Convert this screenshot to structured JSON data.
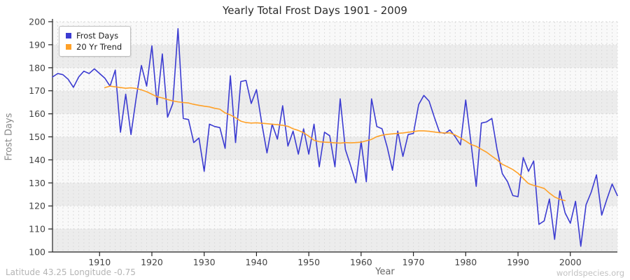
{
  "title": "Yearly Total Frost Days 1901 - 2009",
  "footer": {
    "left": "Latitude 43.25 Longitude -0.75",
    "right": "worldspecies.org"
  },
  "legend": [
    {
      "label": "Frost Days",
      "color": "#3b3bd1"
    },
    {
      "label": "20 Yr Trend",
      "color": "#ffa128"
    }
  ],
  "chart_data": {
    "type": "line",
    "title": "Yearly Total Frost Days 1901 - 2009",
    "xlabel": "Year",
    "ylabel": "Frost Days",
    "xlim": [
      1901,
      2009
    ],
    "ylim": [
      100,
      200
    ],
    "x_ticks": [
      1910,
      1920,
      1930,
      1940,
      1950,
      1960,
      1970,
      1980,
      1990,
      2000
    ],
    "y_ticks": [
      100,
      110,
      120,
      130,
      140,
      150,
      160,
      170,
      180,
      190,
      200
    ],
    "grid": "yearly vertical dashed lines, horizontal dashed lines each 10, alternating horizontal bands",
    "legend_position": "top-left",
    "band_colors": {
      "dark": "#ececec",
      "light": "#f9f9f9"
    },
    "gridline_color": "#dcdcdc",
    "axis_color": "#222222",
    "tick_label_color": "#444444",
    "series": [
      {
        "name": "Frost Days",
        "color": "#3b3bd1",
        "x_start": 1901,
        "values": [
          176,
          177.5,
          177,
          175,
          171.5,
          176,
          178.5,
          177.5,
          179.5,
          177.5,
          175.5,
          172,
          179,
          152,
          168.5,
          151,
          167,
          181,
          172,
          189.5,
          164,
          186,
          158.5,
          164.5,
          197,
          158,
          157.5,
          147.5,
          149.5,
          135,
          155.5,
          154.5,
          154,
          145,
          176.5,
          147.5,
          174,
          174.5,
          164.5,
          170.5,
          156,
          143,
          155.5,
          149,
          163.5,
          146,
          152.5,
          142.5,
          153.5,
          142.5,
          155.5,
          137,
          152,
          150.5,
          137,
          166.5,
          144.5,
          137.5,
          130,
          148,
          130.5,
          166.5,
          154.5,
          153.5,
          145.5,
          135.5,
          152.5,
          141.5,
          151,
          151.5,
          164,
          168,
          165.5,
          158.5,
          152,
          151.5,
          153,
          150,
          146.5,
          166,
          147.5,
          128.5,
          156,
          156.5,
          158,
          144.5,
          134,
          130.5,
          124.5,
          124,
          141,
          135,
          139.5,
          112,
          113.5,
          123,
          105.5,
          126.5,
          117,
          112.5,
          122,
          102.5,
          120.5,
          126,
          133.5,
          116,
          123,
          129.5,
          124.5
        ]
      },
      {
        "name": "20 Yr Trend",
        "color": "#ffa128",
        "x_start": 1911,
        "values": [
          171.4,
          172,
          171.7,
          171.4,
          171.1,
          171.3,
          171,
          170.4,
          169.6,
          168.5,
          167.4,
          166.9,
          166.2,
          165.6,
          165.2,
          164.9,
          164.7,
          164.1,
          163.7,
          163.3,
          163,
          162.4,
          162,
          160.4,
          159.5,
          158.3,
          156.8,
          156.2,
          156,
          156.1,
          155.9,
          155.7,
          155.5,
          155.3,
          155,
          154.6,
          153.5,
          152.8,
          151.8,
          150.3,
          148.5,
          147.9,
          147.7,
          147.6,
          147.4,
          147.3,
          147.5,
          147.4,
          147.5,
          147.7,
          148.3,
          148.9,
          150.1,
          150.7,
          151.1,
          151.3,
          151.5,
          151.7,
          152,
          152.3,
          152.6,
          152.6,
          152.4,
          152.1,
          151.8,
          151.7,
          151.7,
          150.8,
          149.5,
          148.2,
          146.7,
          145.9,
          144.6,
          143.3,
          141.6,
          140,
          138.1,
          137,
          135.8,
          134.2,
          131.9,
          129.7,
          128.9,
          128.3,
          127.6,
          125.6,
          123.9,
          122.9,
          122.3
        ]
      }
    ]
  }
}
